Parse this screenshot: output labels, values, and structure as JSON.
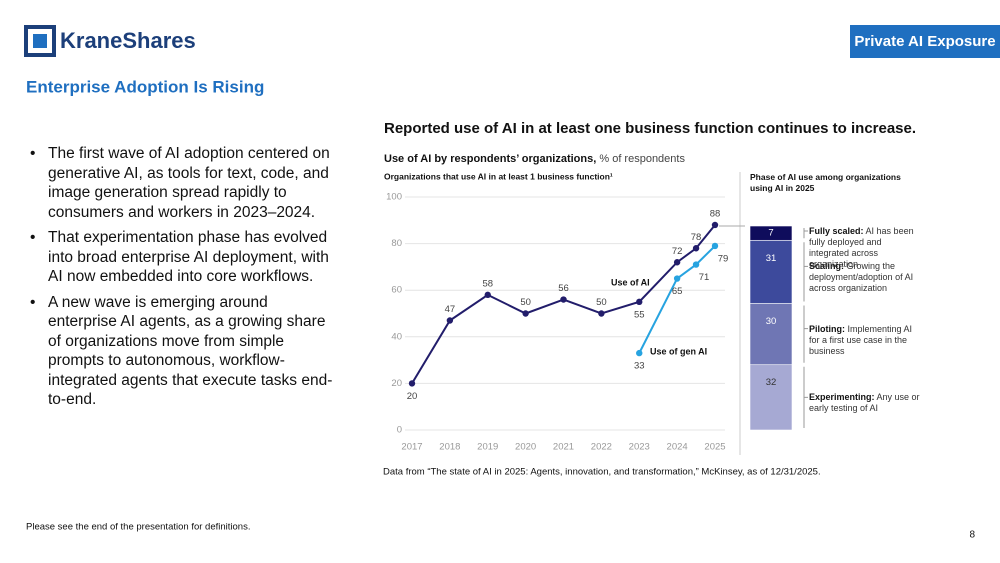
{
  "header": {
    "logo": "KraneShares",
    "badge": "Private AI Exposure",
    "title": "Enterprise Adoption Is Rising"
  },
  "bullets": [
    "The first wave of AI adoption centered on generative AI, as tools for text, code, and image generation spread rapidly to consumers and workers in 2023–2024.",
    "That experimentation phase has evolved into broad enterprise AI deployment, with AI now embedded into core workflows.",
    "A new wave is emerging around enterprise AI agents, as a growing share of organizations move from simple prompts to autonomous, workflow-integrated agents that execute tasks end-to-end."
  ],
  "source": "Data from “The state of AI in 2025: Agents, innovation, and transformation,” McKinsey, as of 12/31/2025.",
  "footer": "Please see the end of the presentation for definitions.",
  "page_number": "8",
  "chart_data": [
    {
      "type": "line",
      "title": "Reported use of AI in at least one business function continues to increase.",
      "subtitle": "Use of AI by respondents’ organizations,",
      "subtitle_unit": "% of respondents",
      "y_label": "Organizations that use AI in at least 1 business function¹",
      "x": [
        2017,
        2018,
        2019,
        2020,
        2021,
        2022,
        2023,
        2024,
        2024.5,
        2025
      ],
      "series": [
        {
          "name": "Use of AI",
          "color": "#221d6b",
          "values": [
            20,
            47,
            58,
            50,
            56,
            50,
            55,
            72,
            78,
            88
          ]
        },
        {
          "name": "Use of gen AI",
          "color": "#27a3e0",
          "values": [
            null,
            null,
            null,
            null,
            null,
            null,
            33,
            65,
            71,
            79
          ]
        }
      ],
      "xlim": [
        2017,
        2025
      ],
      "xticks": [
        2017,
        2018,
        2019,
        2020,
        2021,
        2022,
        2023,
        2024,
        2025
      ],
      "ylim": [
        0,
        100
      ],
      "yticks": [
        0,
        20,
        40,
        60,
        80,
        100
      ],
      "grid": true
    },
    {
      "type": "stacked-bar",
      "title": "Phase of AI use among organizations using AI in 2025",
      "ylim": [
        0,
        100
      ],
      "series": [
        {
          "name": "Fully scaled:",
          "description": "AI has been fully deployed and integrated across organization",
          "color": "#0f0c5c",
          "values": [
            7
          ]
        },
        {
          "name": "Scaling:",
          "description": "Growing the deployment/adoption of AI across organization",
          "color": "#3d4a9c",
          "values": [
            31
          ]
        },
        {
          "name": "Piloting:",
          "description": "Implementing AI for a first use case in the business",
          "color": "#6f76b4",
          "values": [
            30
          ]
        },
        {
          "name": "Experimenting:",
          "description": "Any use or early testing of AI",
          "color": "#a6a9d3",
          "values": [
            32
          ]
        }
      ]
    }
  ]
}
